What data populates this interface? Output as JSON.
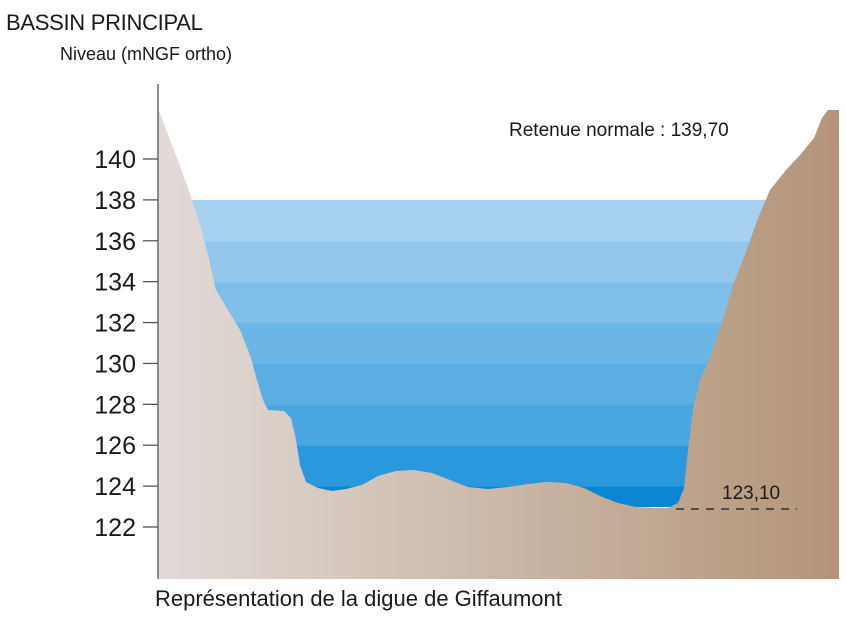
{
  "title": "BASSIN PRINCIPAL",
  "y_axis_label": "Niveau (mNGF ortho)",
  "caption": "Représentation de la digue de Giffaumont",
  "annotations": {
    "normal_level": "Retenue normale : 139,70",
    "bottom_level": "123,10"
  },
  "colors": {
    "water_bands": [
      "#0a86d3",
      "#2a98dc",
      "#4aa6e0",
      "#5aaee2",
      "#6cb6e6",
      "#80bfe9",
      "#93c8ec",
      "#a6d1f0",
      "#c4dcf3"
    ],
    "ground_left": "#e2dbd8",
    "ground_right": "#b39478",
    "axis": "#555555"
  },
  "chart_data": {
    "type": "area",
    "ylabel": "Niveau (mNGF ortho)",
    "y_ticks": [
      122,
      124,
      126,
      128,
      130,
      132,
      134,
      136,
      138,
      140
    ],
    "ylim": [
      120,
      142
    ],
    "water_level_shown": 138,
    "normal_retention_level": 139.7,
    "lowest_level": 123.1,
    "water_bands": [
      [
        123,
        124
      ],
      [
        124,
        126
      ],
      [
        126,
        128
      ],
      [
        128,
        130
      ],
      [
        130,
        132
      ],
      [
        132,
        134
      ],
      [
        134,
        136
      ],
      [
        136,
        138
      ]
    ]
  }
}
